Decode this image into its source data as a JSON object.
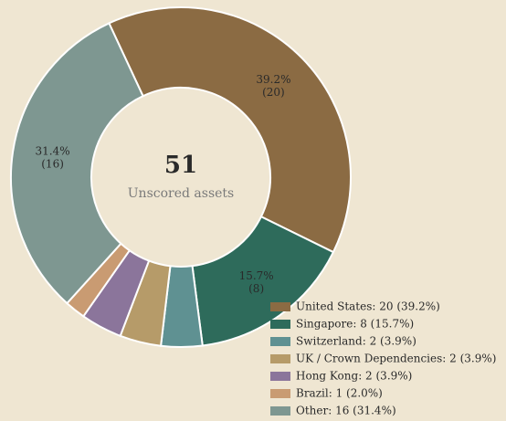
{
  "chart_data": {
    "type": "donut",
    "categories": [
      "United States",
      "Singapore",
      "Switzerland",
      "UK / Crown Dependencies",
      "Hong Kong",
      "Brazil",
      "Other"
    ],
    "values": [
      20,
      8,
      2,
      2,
      2,
      1,
      16
    ],
    "colors": [
      "#8b6b43",
      "#2e6b5b",
      "#5f9192",
      "#b69b69",
      "#8b759b",
      "#c99b72",
      "#7e9791"
    ],
    "value_labels": [
      [
        "39.2%",
        "(20)"
      ],
      [
        "15.7%",
        "(8)"
      ],
      null,
      null,
      null,
      null,
      [
        "31.4%",
        "(16)"
      ]
    ],
    "legend_labels": [
      "United States: 20 (39.2%)",
      "Singapore: 8 (15.7%)",
      "Switzerland: 2 (3.9%)",
      "UK / Crown Dependencies: 2 (3.9%)",
      "Hong Kong: 2 (3.9%)",
      "Brazil: 1 (2.0%)",
      "Other: 16 (31.4%)"
    ],
    "total": 51,
    "center_label": "Unscored assets",
    "legend": "bottom-right"
  }
}
